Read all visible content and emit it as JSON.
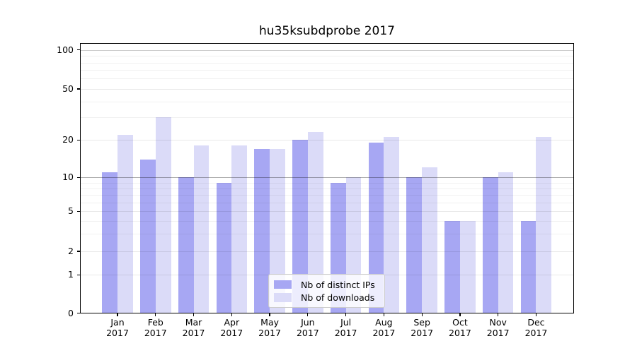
{
  "chart_data": {
    "type": "bar",
    "title": "hu35ksubdprobe 2017",
    "categories": [
      {
        "line1": "Jan",
        "line2": "2017"
      },
      {
        "line1": "Feb",
        "line2": "2017"
      },
      {
        "line1": "Mar",
        "line2": "2017"
      },
      {
        "line1": "Apr",
        "line2": "2017"
      },
      {
        "line1": "May",
        "line2": "2017"
      },
      {
        "line1": "Jun",
        "line2": "2017"
      },
      {
        "line1": "Jul",
        "line2": "2017"
      },
      {
        "line1": "Aug",
        "line2": "2017"
      },
      {
        "line1": "Sep",
        "line2": "2017"
      },
      {
        "line1": "Oct",
        "line2": "2017"
      },
      {
        "line1": "Nov",
        "line2": "2017"
      },
      {
        "line1": "Dec",
        "line2": "2017"
      }
    ],
    "series": [
      {
        "name": "Nb of distinct IPs",
        "color": "#a7a7f3",
        "values": [
          11,
          14,
          10,
          9,
          17,
          20,
          9,
          19,
          10,
          4,
          10,
          4
        ]
      },
      {
        "name": "Nb of downloads",
        "color": "#dbdbf8",
        "values": [
          22,
          30,
          18,
          18,
          17,
          23,
          10,
          21,
          12,
          4,
          11,
          21
        ]
      }
    ],
    "yscale": "log-like",
    "yticks": [
      0,
      1,
      2,
      5,
      10,
      20,
      50,
      100
    ],
    "yticks_minor": [
      3,
      4,
      6,
      7,
      8,
      9,
      30,
      40,
      60,
      70,
      80,
      90
    ],
    "ylim": [
      0,
      113
    ],
    "xlabel": "",
    "ylabel": "",
    "grid": true,
    "emphasized_gridline_value": 10,
    "legend_position": "lower center"
  }
}
